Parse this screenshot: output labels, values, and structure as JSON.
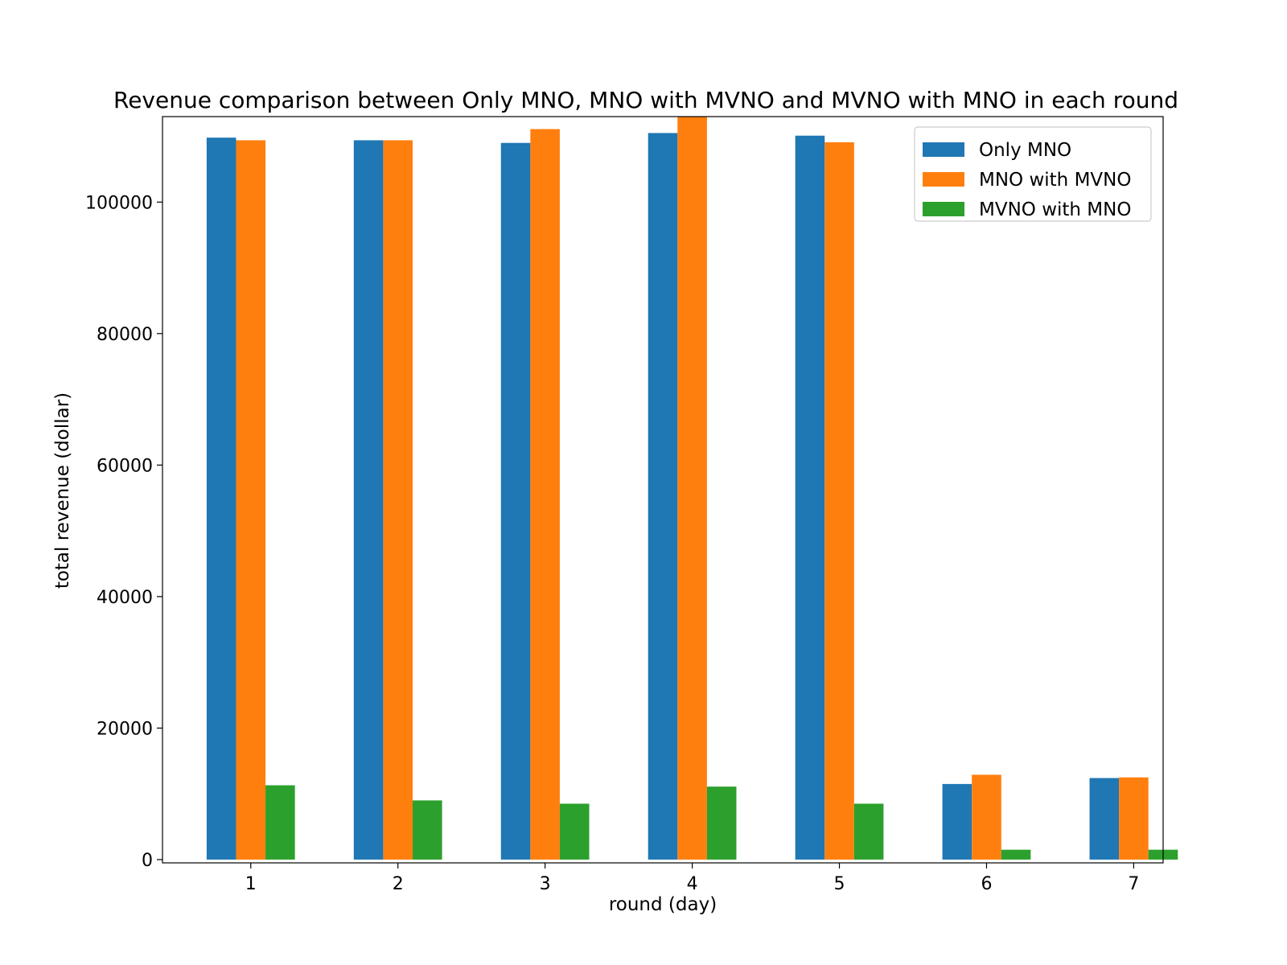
{
  "chart_data": {
    "type": "bar",
    "title": "Revenue comparison between Only MNO, MNO with MVNO and MVNO with MNO in each round",
    "xlabel": "round (day)",
    "ylabel": "total revenue (dollar)",
    "categories": [
      "1",
      "2",
      "3",
      "4",
      "5",
      "6",
      "7"
    ],
    "yticks": [
      0,
      20000,
      40000,
      60000,
      80000,
      100000
    ],
    "ytick_labels": [
      "0",
      "20000",
      "40000",
      "60000",
      "80000",
      "100000"
    ],
    "ylim": [
      -500,
      113000
    ],
    "legend_position": "top-right",
    "grid": false,
    "series": [
      {
        "name": "Only MNO",
        "color": "#1f77b4",
        "values": [
          109800,
          109400,
          109000,
          110500,
          110100,
          11500,
          12400
        ]
      },
      {
        "name": "MNO with MVNO",
        "color": "#ff7f0e",
        "values": [
          109400,
          109400,
          111100,
          113000,
          109100,
          12900,
          12500
        ]
      },
      {
        "name": "MVNO with MNO",
        "color": "#2ca02c",
        "values": [
          11300,
          9000,
          8500,
          11100,
          8500,
          1500,
          1500
        ]
      }
    ]
  }
}
